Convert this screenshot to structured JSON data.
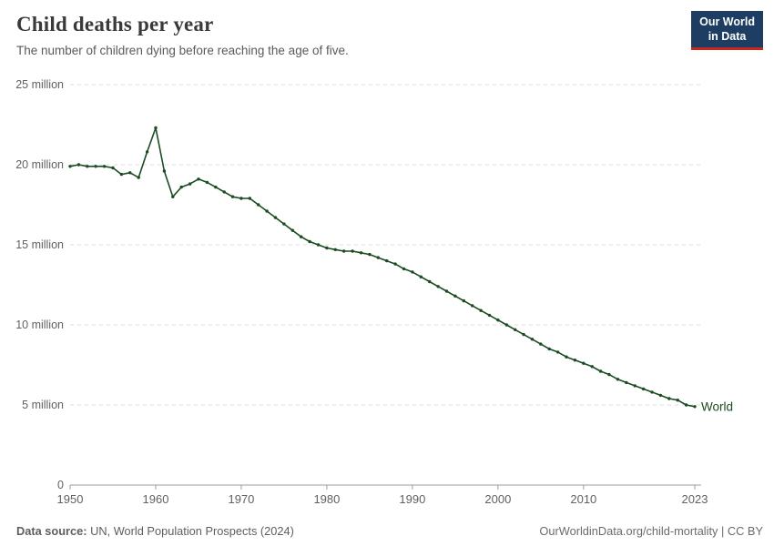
{
  "header": {
    "title": "Child deaths per year",
    "subtitle": "The number of children dying before reaching the age of five.",
    "logo": {
      "line1": "Our World",
      "line2": "in Data",
      "bg_color": "#1d3d63",
      "accent_color": "#c7261e",
      "text_color": "#ffffff"
    }
  },
  "chart_data": {
    "type": "line",
    "title": "Child deaths per year",
    "subtitle": "The number of children dying before reaching the age of five.",
    "unit": "million",
    "ylim": [
      0,
      25
    ],
    "yticks": [
      {
        "value": 0,
        "label": "0"
      },
      {
        "value": 5,
        "label": "5 million"
      },
      {
        "value": 10,
        "label": "10 million"
      },
      {
        "value": 15,
        "label": "15 million"
      },
      {
        "value": 20,
        "label": "20 million"
      },
      {
        "value": 25,
        "label": "25 million"
      }
    ],
    "xticks": [
      1950,
      1960,
      1970,
      1980,
      1990,
      2000,
      2010,
      2023
    ],
    "grid": "horizontal-dashed",
    "legend_position": "end-of-line",
    "line_color": "#1b4b21",
    "series": [
      {
        "name": "World",
        "years": [
          1950,
          1951,
          1952,
          1953,
          1954,
          1955,
          1956,
          1957,
          1958,
          1959,
          1960,
          1961,
          1962,
          1963,
          1964,
          1965,
          1966,
          1967,
          1968,
          1969,
          1970,
          1971,
          1972,
          1973,
          1974,
          1975,
          1976,
          1977,
          1978,
          1979,
          1980,
          1981,
          1982,
          1983,
          1984,
          1985,
          1986,
          1987,
          1988,
          1989,
          1990,
          1991,
          1992,
          1993,
          1994,
          1995,
          1996,
          1997,
          1998,
          1999,
          2000,
          2001,
          2002,
          2003,
          2004,
          2005,
          2006,
          2007,
          2008,
          2009,
          2010,
          2011,
          2012,
          2013,
          2014,
          2015,
          2016,
          2017,
          2018,
          2019,
          2020,
          2021,
          2022,
          2023
        ],
        "values": [
          19.9,
          20.0,
          19.9,
          19.9,
          19.9,
          19.8,
          19.4,
          19.5,
          19.2,
          20.8,
          22.3,
          19.6,
          18.0,
          18.6,
          18.8,
          19.1,
          18.9,
          18.6,
          18.3,
          18.0,
          17.9,
          17.9,
          17.5,
          17.1,
          16.7,
          16.3,
          15.9,
          15.5,
          15.2,
          15.0,
          14.8,
          14.7,
          14.6,
          14.6,
          14.5,
          14.4,
          14.2,
          14.0,
          13.8,
          13.5,
          13.3,
          13.0,
          12.7,
          12.4,
          12.1,
          11.8,
          11.5,
          11.2,
          10.9,
          10.6,
          10.3,
          10.0,
          9.7,
          9.4,
          9.1,
          8.8,
          8.5,
          8.3,
          8.0,
          7.8,
          7.6,
          7.4,
          7.1,
          6.9,
          6.6,
          6.4,
          6.2,
          6.0,
          5.8,
          5.6,
          5.4,
          5.3,
          5.0,
          4.9
        ]
      }
    ]
  },
  "footer": {
    "source_label": "Data source:",
    "source_value": "UN, World Population Prospects (2024)",
    "credit": "OurWorldinData.org/child-mortality | CC BY"
  }
}
